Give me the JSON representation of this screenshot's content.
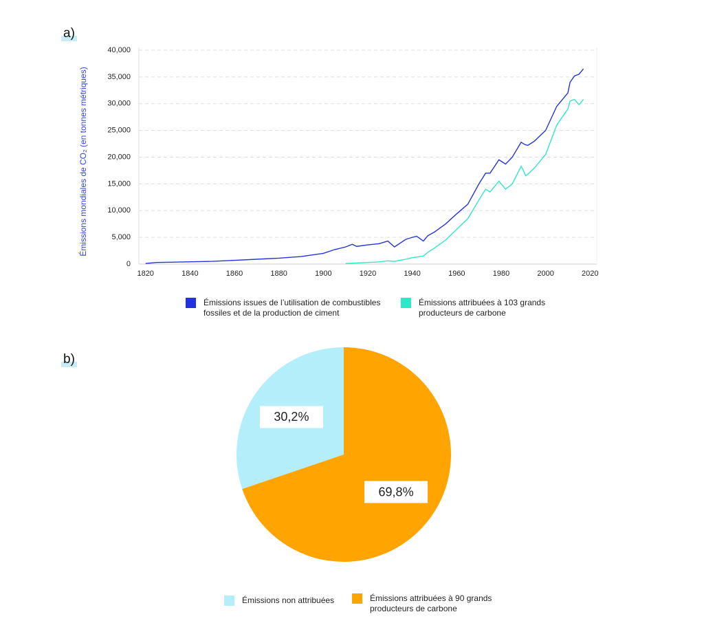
{
  "chart_data": [
    {
      "type": "line",
      "label": "a)",
      "ylabel": "Émissions mondiales de CO₂ (en tonnes métriques)",
      "x": [
        1820,
        1825,
        1850,
        1860,
        1870,
        1880,
        1890,
        1900,
        1905,
        1910,
        1913,
        1915,
        1920,
        1925,
        1929,
        1932,
        1937,
        1940,
        1942,
        1945,
        1947,
        1950,
        1955,
        1960,
        1965,
        1970,
        1973,
        1975,
        1979,
        1982,
        1985,
        1989,
        1990,
        1991,
        1992,
        1995,
        2000,
        2005,
        2010,
        2011,
        2013,
        2015,
        2017
      ],
      "series": [
        {
          "name": "Émissions issues de l’utilisation de combustibles fossiles et de la production de ciment",
          "color": "#2233dd",
          "values": [
            100,
            300,
            500,
            700,
            900,
            1100,
            1400,
            2000,
            2700,
            3200,
            3700,
            3300,
            3600,
            3800,
            4300,
            3200,
            4600,
            5000,
            5200,
            4300,
            5300,
            6000,
            7500,
            9400,
            11200,
            15000,
            17000,
            17000,
            19500,
            18700,
            20000,
            22800,
            22500,
            22300,
            22200,
            23000,
            25000,
            29500,
            32000,
            34000,
            35200,
            35500,
            36500
          ]
        },
        {
          "name": "Émissions attribuées à 103 grands producteurs de carbone",
          "color": "#2ee8c8",
          "values": [
            null,
            null,
            null,
            null,
            null,
            null,
            null,
            null,
            null,
            100,
            150,
            200,
            300,
            400,
            600,
            500,
            900,
            1200,
            1300,
            1500,
            2200,
            3000,
            4500,
            6500,
            8500,
            12000,
            14000,
            13500,
            15500,
            14000,
            15000,
            18300,
            17500,
            16500,
            16800,
            18000,
            20500,
            26000,
            29000,
            30500,
            30800,
            29800,
            30800
          ]
        }
      ],
      "xlim": [
        1817,
        2023
      ],
      "xticks": [
        1820,
        1840,
        1860,
        1880,
        1900,
        1920,
        1940,
        1960,
        1980,
        2000,
        2020
      ],
      "ylim": [
        0,
        40000
      ],
      "yticks": [
        0,
        {
          "value": 5000,
          "label": "5,000"
        },
        {
          "value": 10000,
          "label": "10,000"
        },
        {
          "value": 15000,
          "label": "15,000"
        },
        {
          "value": 20000,
          "label": "20,000"
        },
        {
          "value": 25000,
          "label": "25,000"
        },
        {
          "value": 30000,
          "label": "30,000"
        },
        {
          "value": 35000,
          "label": "35,000"
        },
        {
          "value": 40000,
          "label": "40,000"
        }
      ],
      "grid": true
    },
    {
      "type": "pie",
      "label": "b)",
      "categories": [
        "Émissions non attribuées",
        "Émissions attribuées à 90 grands producteurs de carbone"
      ],
      "values": [
        30.2,
        69.8
      ],
      "value_labels": [
        "30,2%",
        "69,8%"
      ],
      "colors": [
        "#b5eefb",
        "#ffa400"
      ]
    }
  ]
}
